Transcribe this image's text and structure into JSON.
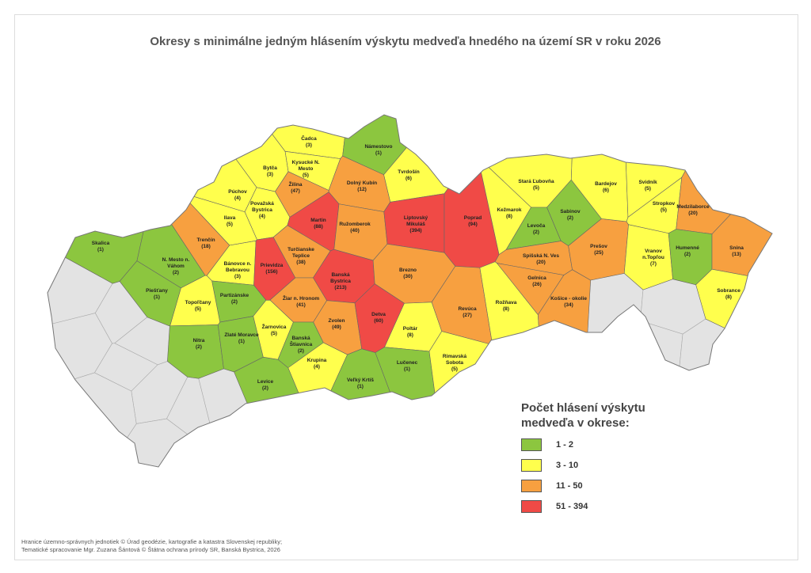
{
  "title": "Okresy s minimálne jedným hlásením výskytu medveďa hnedého na území SR v roku 2026",
  "districts": [
    {
      "name": "Skalica",
      "count": 1,
      "count_label": "(1)"
    },
    {
      "name": "N. Mesto n. Váhom",
      "count": 2,
      "count_label": "(2)"
    },
    {
      "name": "Piešťany",
      "count": 1,
      "count_label": "(1)"
    },
    {
      "name": "Trenčín",
      "count": 18,
      "count_label": "(18)"
    },
    {
      "name": "Bánovce n. Bebravou",
      "count": 3,
      "count_label": "(3)"
    },
    {
      "name": "Topoľčany",
      "count": 5,
      "count_label": "(5)"
    },
    {
      "name": "Partizánske",
      "count": 2,
      "count_label": "(2)"
    },
    {
      "name": "Nitra",
      "count": 2,
      "count_label": "(2)"
    },
    {
      "name": "Zlaté Moravce",
      "count": 1,
      "count_label": "(1)"
    },
    {
      "name": "Levice",
      "count": 2,
      "count_label": "(2)"
    },
    {
      "name": "Čadca",
      "count": 3,
      "count_label": "(3)"
    },
    {
      "name": "Bytča",
      "count": 3,
      "count_label": "(3)"
    },
    {
      "name": "Kysucké N. Mesto",
      "count": 5,
      "count_label": "(5)"
    },
    {
      "name": "Púchov",
      "count": 4,
      "count_label": "(4)"
    },
    {
      "name": "Považská Bystrica",
      "count": 4,
      "count_label": "(4)"
    },
    {
      "name": "Ilava",
      "count": 5,
      "count_label": "(5)"
    },
    {
      "name": "Žilina",
      "count": 47,
      "count_label": "(47)"
    },
    {
      "name": "Námestovo",
      "count": 1,
      "count_label": "(1)"
    },
    {
      "name": "Tvrdošín",
      "count": 6,
      "count_label": "(6)"
    },
    {
      "name": "Dolný Kubín",
      "count": 12,
      "count_label": "(12)"
    },
    {
      "name": "Martin",
      "count": 88,
      "count_label": "(88)"
    },
    {
      "name": "Ružomberok",
      "count": 40,
      "count_label": "(40)"
    },
    {
      "name": "Liptovský Mikuláš",
      "count": 394,
      "count_label": "(394)"
    },
    {
      "name": "Poprad",
      "count": 94,
      "count_label": "(94)"
    },
    {
      "name": "Prievidza",
      "count": 156,
      "count_label": "(156)"
    },
    {
      "name": "Turčianske Teplice",
      "count": 38,
      "count_label": "(38)"
    },
    {
      "name": "Banská Bystrica",
      "count": 213,
      "count_label": "(213)"
    },
    {
      "name": "Brezno",
      "count": 30,
      "count_label": "(30)"
    },
    {
      "name": "Žiar n. Hronom",
      "count": 41,
      "count_label": "(41)"
    },
    {
      "name": "Žarnovica",
      "count": 5,
      "count_label": "(5)"
    },
    {
      "name": "Banská Štiavnica",
      "count": 2,
      "count_label": "(2)"
    },
    {
      "name": "Krupina",
      "count": 4,
      "count_label": "(4)"
    },
    {
      "name": "Zvolen",
      "count": 49,
      "count_label": "(49)"
    },
    {
      "name": "Detva",
      "count": 60,
      "count_label": "(60)"
    },
    {
      "name": "Veľký Krtíš",
      "count": 1,
      "count_label": "(1)"
    },
    {
      "name": "Poltár",
      "count": 8,
      "count_label": "(8)"
    },
    {
      "name": "Lučenec",
      "count": 1,
      "count_label": "(1)"
    },
    {
      "name": "Rimavská Sobota",
      "count": 5,
      "count_label": "(5)"
    },
    {
      "name": "Revúca",
      "count": 27,
      "count_label": "(27)"
    },
    {
      "name": "Rožňava",
      "count": 8,
      "count_label": "(8)"
    },
    {
      "name": "Stará Ľubovňa",
      "count": 5,
      "count_label": "(5)"
    },
    {
      "name": "Kežmarok",
      "count": 8,
      "count_label": "(8)"
    },
    {
      "name": "Levoča",
      "count": 2,
      "count_label": "(2)"
    },
    {
      "name": "Sabinov",
      "count": 2,
      "count_label": "(2)"
    },
    {
      "name": "Spišská N. Ves",
      "count": 20,
      "count_label": "(20)"
    },
    {
      "name": "Gelnica",
      "count": 26,
      "count_label": "(26)"
    },
    {
      "name": "Košice - okolie",
      "count": 34,
      "count_label": "(34)"
    },
    {
      "name": "Prešov",
      "count": 25,
      "count_label": "(25)"
    },
    {
      "name": "Bardejov",
      "count": 6,
      "count_label": "(6)"
    },
    {
      "name": "Svidník",
      "count": 5,
      "count_label": "(5)"
    },
    {
      "name": "Stropkov",
      "count": 5,
      "count_label": "(5)"
    },
    {
      "name": "Medzilaborce",
      "count": 20,
      "count_label": "(20)"
    },
    {
      "name": "Vranov n.Topľou",
      "count": 7,
      "count_label": "(7)"
    },
    {
      "name": "Humenné",
      "count": 2,
      "count_label": "(2)"
    },
    {
      "name": "Snina",
      "count": 13,
      "count_label": "(13)"
    },
    {
      "name": "Sobrance",
      "count": 8,
      "count_label": "(8)"
    }
  ],
  "legend": {
    "title": "Počet hlásení výskytu medveďa v okrese:",
    "items": [
      {
        "label": "1 - 2",
        "min": 1,
        "max": 2,
        "color": "#8cc63f"
      },
      {
        "label": "3 - 10",
        "min": 3,
        "max": 10,
        "color": "#ffff4d"
      },
      {
        "label": "11 - 50",
        "min": 11,
        "max": 50,
        "color": "#f7a040"
      },
      {
        "label": "51 - 394",
        "min": 51,
        "max": 394,
        "color": "#f04a46"
      }
    ]
  },
  "footer": [
    "Hranice územno-správnych jednotiek © Úrad geodézie, kartografie a katastra Slovenskej republiky;",
    "Tematické spracovanie Mgr. Zuzana Šántová © Štátna ochrana prírody SR, Banská Bystrica, 2026"
  ]
}
